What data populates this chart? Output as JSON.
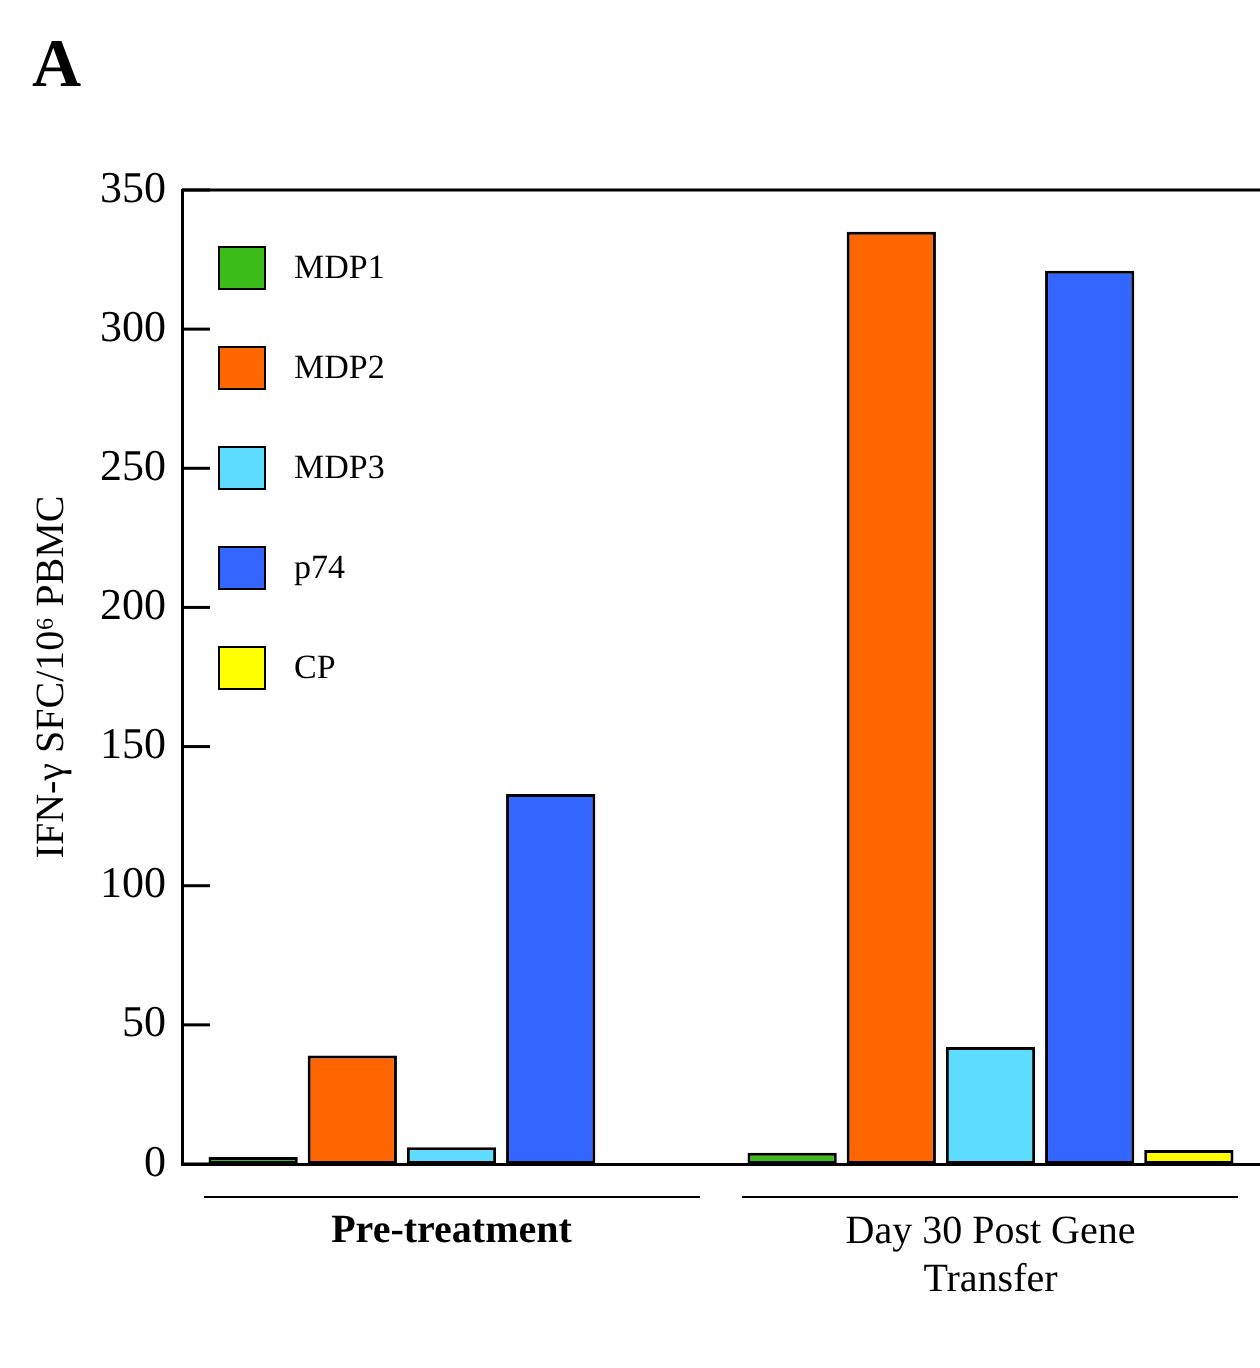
{
  "chart_data": {
    "type": "bar",
    "ylabel": "IFN-γ SFC/10⁶ PBMC",
    "categories": [
      "Pre-treatment",
      "Day 30 Post Gene Transfer"
    ],
    "series": [
      {
        "name": "MDP1",
        "color": "#3cbc18",
        "values": [
          2.5,
          4
        ]
      },
      {
        "name": "MDP2",
        "color": "#ff6600",
        "values": [
          39,
          335
        ]
      },
      {
        "name": "MDP3",
        "color": "#5ddcff",
        "values": [
          6,
          42
        ]
      },
      {
        "name": "p74",
        "color": "#3366ff",
        "values": [
          133,
          321
        ]
      },
      {
        "name": "CP",
        "color": "#ffff00",
        "values": [
          0,
          5
        ]
      }
    ],
    "ylim": [
      0,
      350
    ],
    "yticks": [
      0,
      50,
      100,
      150,
      200,
      250,
      300,
      350
    ],
    "grid": false,
    "legend": "top left",
    "annotations": [
      "A"
    ]
  }
}
